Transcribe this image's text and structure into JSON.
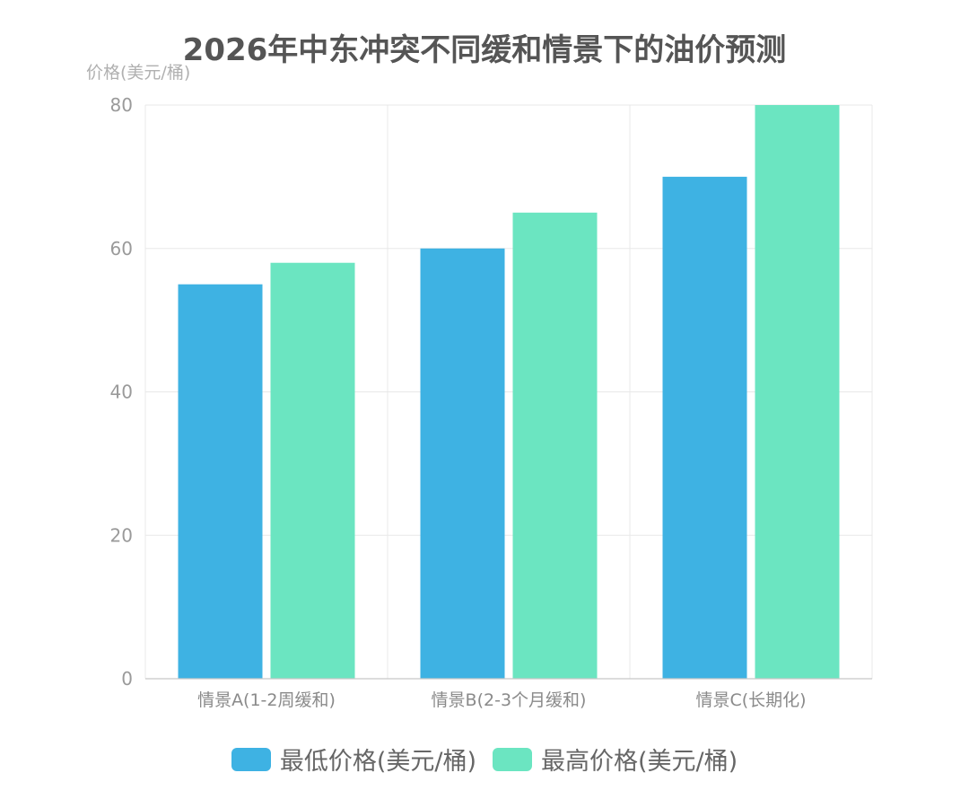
{
  "chart_data": {
    "type": "bar",
    "title": "2026年中东冲突不同缓和情景下的油价预测",
    "ylabel": "价格(美元/桶)",
    "xlabel": "",
    "categories": [
      "情景A(1-2周缓和)",
      "情景B(2-3个月缓和)",
      "情景C(长期化)"
    ],
    "series": [
      {
        "name": "最低价格(美元/桶)",
        "values": [
          55,
          60,
          70
        ],
        "color": "#3eb2e3"
      },
      {
        "name": "最高价格(美元/桶)",
        "values": [
          58,
          65,
          80
        ],
        "color": "#6be5c1"
      }
    ],
    "ylim": [
      0,
      80
    ],
    "yticks": [
      "0",
      "20",
      "40",
      "60",
      "80"
    ],
    "grid": true,
    "legend": "bottom-center"
  }
}
